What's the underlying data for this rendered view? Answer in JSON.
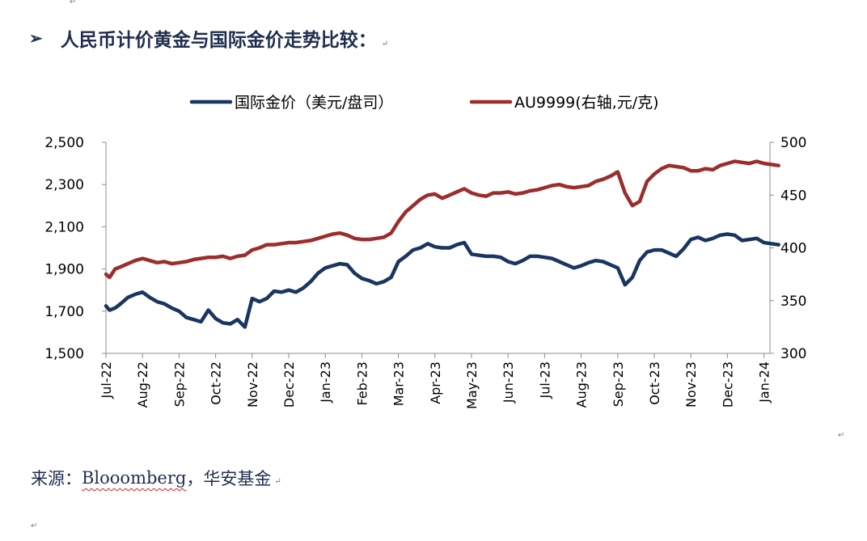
{
  "heading": {
    "bullet": "➢",
    "text": "人民币计价黄金与国际金价走势比较：",
    "end_mark": "↵"
  },
  "source": {
    "prefix": "来源：",
    "brand": "Blooomberg",
    "suffix": "，华安基金",
    "end_mark": "↵"
  },
  "paragraph_mark": "↵",
  "chart_data": {
    "type": "line",
    "x_tick_labels": [
      "Jul-22",
      "Aug-22",
      "Sep-22",
      "Oct-22",
      "Nov-22",
      "Dec-22",
      "Jan-23",
      "Feb-23",
      "Mar-23",
      "Apr-23",
      "May-23",
      "Jun-23",
      "Jul-23",
      "Aug-23",
      "Sep-23",
      "Oct-23",
      "Nov-23",
      "Dec-23",
      "Jan-24"
    ],
    "left_axis": {
      "ylim": [
        1500,
        2500
      ],
      "ticks": [
        1500,
        1700,
        1900,
        2100,
        2300,
        2500
      ],
      "tick_labels": [
        "1,500",
        "1,700",
        "1,900",
        "2,100",
        "2,300",
        "2,500"
      ]
    },
    "right_axis": {
      "ylim": [
        300,
        500
      ],
      "ticks": [
        300,
        350,
        400,
        450,
        500
      ],
      "tick_labels": [
        "300",
        "350",
        "400",
        "450",
        "500"
      ]
    },
    "legend_position": "top",
    "grid": false,
    "series": [
      {
        "name": "国际金价（美元/盘司）",
        "axis": "left",
        "color": "#1a3560",
        "x": [
          0,
          0.1,
          0.25,
          0.4,
          0.6,
          0.8,
          1,
          1.2,
          1.4,
          1.6,
          1.8,
          2,
          2.2,
          2.4,
          2.6,
          2.8,
          3,
          3.2,
          3.4,
          3.6,
          3.8,
          4,
          4.2,
          4.4,
          4.6,
          4.8,
          5,
          5.2,
          5.4,
          5.6,
          5.8,
          6,
          6.2,
          6.4,
          6.6,
          6.8,
          7,
          7.2,
          7.4,
          7.6,
          7.8,
          8,
          8.2,
          8.4,
          8.6,
          8.8,
          9,
          9.2,
          9.4,
          9.6,
          9.8,
          10,
          10.2,
          10.4,
          10.6,
          10.8,
          11,
          11.2,
          11.4,
          11.6,
          11.8,
          12,
          12.2,
          12.4,
          12.6,
          12.8,
          13,
          13.2,
          13.4,
          13.6,
          13.8,
          14,
          14.2,
          14.4,
          14.6,
          14.8,
          15,
          15.2,
          15.4,
          15.6,
          15.8,
          16,
          16.2,
          16.4,
          16.6,
          16.8,
          17,
          17.2,
          17.4,
          17.6,
          17.8,
          18,
          18.2,
          18.4
        ],
        "values": [
          1725,
          1705,
          1715,
          1735,
          1765,
          1780,
          1790,
          1765,
          1745,
          1735,
          1715,
          1700,
          1670,
          1660,
          1650,
          1705,
          1665,
          1645,
          1640,
          1660,
          1625,
          1760,
          1745,
          1760,
          1795,
          1790,
          1800,
          1790,
          1810,
          1840,
          1880,
          1905,
          1915,
          1925,
          1920,
          1880,
          1855,
          1845,
          1830,
          1840,
          1860,
          1935,
          1960,
          1990,
          2000,
          2020,
          2005,
          2000,
          2000,
          2015,
          2025,
          1970,
          1965,
          1960,
          1960,
          1955,
          1935,
          1925,
          1940,
          1960,
          1960,
          1955,
          1950,
          1935,
          1920,
          1905,
          1915,
          1930,
          1940,
          1935,
          1920,
          1905,
          1825,
          1860,
          1940,
          1980,
          1990,
          1990,
          1975,
          1960,
          1995,
          2040,
          2050,
          2035,
          2045,
          2060,
          2065,
          2060,
          2035,
          2040,
          2045,
          2025,
          2020,
          2015
        ]
      },
      {
        "name": "AU9999(右轴,元/克)",
        "axis": "right",
        "color": "#9b2d2d",
        "x": [
          0,
          0.1,
          0.25,
          0.4,
          0.6,
          0.8,
          1,
          1.2,
          1.4,
          1.6,
          1.8,
          2,
          2.2,
          2.4,
          2.6,
          2.8,
          3,
          3.2,
          3.4,
          3.6,
          3.8,
          4,
          4.2,
          4.4,
          4.6,
          4.8,
          5,
          5.2,
          5.4,
          5.6,
          5.8,
          6,
          6.2,
          6.4,
          6.6,
          6.8,
          7,
          7.2,
          7.4,
          7.6,
          7.8,
          8,
          8.2,
          8.4,
          8.6,
          8.8,
          9,
          9.2,
          9.4,
          9.6,
          9.8,
          10,
          10.2,
          10.4,
          10.6,
          10.8,
          11,
          11.2,
          11.4,
          11.6,
          11.8,
          12,
          12.2,
          12.4,
          12.6,
          12.8,
          13,
          13.2,
          13.4,
          13.6,
          13.8,
          14,
          14.2,
          14.4,
          14.6,
          14.8,
          15,
          15.2,
          15.4,
          15.6,
          15.8,
          16,
          16.2,
          16.4,
          16.6,
          16.8,
          17,
          17.2,
          17.4,
          17.6,
          17.8,
          18,
          18.2,
          18.4
        ],
        "values": [
          375,
          372,
          380,
          382,
          385,
          388,
          390,
          388,
          386,
          387,
          385,
          386,
          387,
          389,
          390,
          391,
          391,
          392,
          390,
          392,
          393,
          398,
          400,
          403,
          403,
          404,
          405,
          405,
          406,
          407,
          409,
          411,
          413,
          414,
          412,
          409,
          408,
          408,
          409,
          410,
          414,
          425,
          434,
          440,
          446,
          450,
          451,
          447,
          450,
          453,
          456,
          452,
          450,
          449,
          452,
          452,
          453,
          451,
          452,
          454,
          455,
          457,
          459,
          460,
          458,
          457,
          458,
          459,
          463,
          465,
          468,
          472,
          452,
          440,
          444,
          463,
          470,
          475,
          478,
          477,
          476,
          473,
          473,
          475,
          474,
          478,
          480,
          482,
          481,
          480,
          482,
          480,
          479,
          478
        ]
      }
    ]
  }
}
